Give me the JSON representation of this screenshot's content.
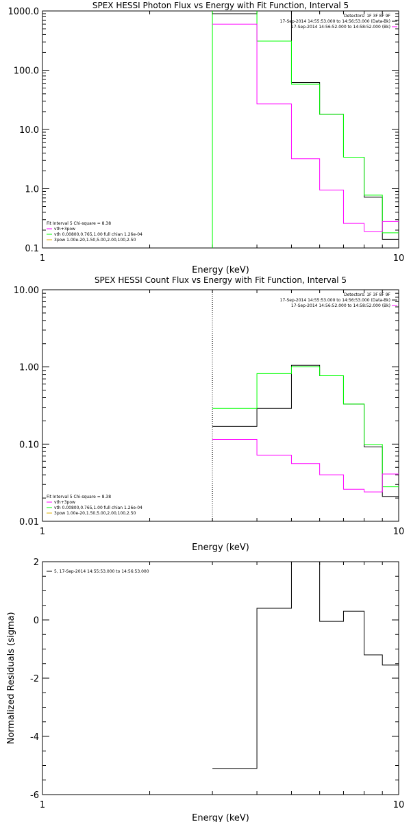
{
  "colors": {
    "data": "#000000",
    "background": "#ff00ff",
    "model": "#00ff00",
    "component": "#ff00ff",
    "spav": "#e0b000"
  },
  "chart_data": [
    {
      "type": "line",
      "title": "SPEX HESSI Photon Flux vs Energy with Fit Function, Interval 5",
      "xlabel": "Energy (keV)",
      "ylabel": "",
      "xscale": "log",
      "yscale": "log",
      "xlim": [
        1,
        10
      ],
      "ylim": [
        0.1,
        1000
      ],
      "xticks": [
        {
          "v": 1,
          "label": "1"
        },
        {
          "v": 10,
          "label": "10"
        }
      ],
      "yticks": [
        {
          "v": 0.1,
          "label": "0.1"
        },
        {
          "v": 1,
          "label": "1.0"
        },
        {
          "v": 10,
          "label": "10.0"
        },
        {
          "v": 100,
          "label": "100.0"
        },
        {
          "v": 1000,
          "label": "1000.0"
        }
      ],
      "vline": {
        "x": 3.0,
        "style": "solid",
        "color": "#00ff00"
      },
      "legend_right": [
        {
          "text": "Detectors: 1F 3F 8F 9F",
          "color": "",
          "line": false
        },
        {
          "text": "17-Sep-2014 14:55:53.000 to 14:56:53.000 (Data-Bk)",
          "color": "#000000",
          "line": true
        },
        {
          "text": "17-Sep-2014 14:56:52.000 to 14:58:52.000 (Bk)",
          "color": "#ff00ff",
          "line": true
        }
      ],
      "legend_left": [
        {
          "text": "Fit Interval 5   Chi-square = 8.38",
          "color": "",
          "line": false
        },
        {
          "text": "vth+3pow",
          "color": "#ff00ff",
          "line": true
        },
        {
          "text": "vth 0.00800,0.765,1.00  full chian 1.26e-04",
          "color": "#00ff00",
          "line": true
        },
        {
          "text": "3pow 1.00e-20,1.50,5.00,2.00,100,2.50",
          "color": "#e0b000",
          "line": true
        }
      ],
      "series": [
        {
          "color": "#000000",
          "edges": [
            3.0,
            4.0,
            5.0,
            6.0,
            7.0,
            8.0,
            9.0,
            10.0
          ],
          "values": [
            900,
            1100,
            62,
            18,
            3.4,
            0.72,
            0.14
          ]
        },
        {
          "color": "#00ff00",
          "edges": [
            3.0,
            4.0,
            5.0,
            6.0,
            7.0,
            8.0,
            9.0,
            10.0
          ],
          "values": [
            1100,
            310,
            58,
            18,
            3.4,
            0.78,
            0.18
          ]
        },
        {
          "color": "#ff00ff",
          "edges": [
            3.0,
            4.0,
            5.0,
            6.0,
            7.0,
            8.0,
            9.0,
            10.0
          ],
          "values": [
            600,
            27,
            3.2,
            0.95,
            0.26,
            0.19,
            0.28
          ]
        }
      ]
    },
    {
      "type": "line",
      "title": "SPEX HESSI Count Flux vs Energy with Fit Function, Interval 5",
      "xlabel": "Energy (keV)",
      "ylabel": "",
      "xscale": "log",
      "yscale": "log",
      "xlim": [
        1,
        10
      ],
      "ylim": [
        0.01,
        10
      ],
      "xticks": [
        {
          "v": 1,
          "label": "1"
        },
        {
          "v": 10,
          "label": "10"
        }
      ],
      "yticks": [
        {
          "v": 0.01,
          "label": "0.01"
        },
        {
          "v": 0.1,
          "label": "0.10"
        },
        {
          "v": 1,
          "label": "1.00"
        },
        {
          "v": 10,
          "label": "10.00"
        }
      ],
      "vline": {
        "x": 3.0,
        "style": "dotted",
        "color": "#000000"
      },
      "legend_right": [
        {
          "text": "Detectors: 1F 3F 8F 9F",
          "color": "",
          "line": false
        },
        {
          "text": "17-Sep-2014 14:55:53.000 to 14:56:53.000 (Data-Bk)",
          "color": "#000000",
          "line": true
        },
        {
          "text": "17-Sep-2014 14:56:52.000 to 14:58:52.000 (Bk)",
          "color": "#ff00ff",
          "line": true
        }
      ],
      "legend_left": [
        {
          "text": "Fit Interval 5   Chi-square = 8.38",
          "color": "",
          "line": false
        },
        {
          "text": "vth+3pow",
          "color": "#ff00ff",
          "line": true
        },
        {
          "text": "vth 0.00800,0.765,1.00  full chian 1.26e-04",
          "color": "#00ff00",
          "line": true
        },
        {
          "text": "3pow 1.00e-20,1.50,5.00,2.00,100,2.50",
          "color": "#e0b000",
          "line": true
        }
      ],
      "series": [
        {
          "color": "#000000",
          "edges": [
            3.0,
            4.0,
            5.0,
            6.0,
            7.0,
            8.0,
            9.0,
            10.0
          ],
          "values": [
            0.17,
            0.29,
            1.05,
            0.77,
            0.33,
            0.092,
            0.021
          ]
        },
        {
          "color": "#00ff00",
          "edges": [
            3.0,
            4.0,
            5.0,
            6.0,
            7.0,
            8.0,
            9.0,
            10.0
          ],
          "values": [
            0.29,
            0.82,
            1.0,
            0.77,
            0.33,
            0.099,
            0.028
          ]
        },
        {
          "color": "#ff00ff",
          "edges": [
            3.0,
            4.0,
            5.0,
            6.0,
            7.0,
            8.0,
            9.0,
            10.0
          ],
          "values": [
            0.115,
            0.072,
            0.056,
            0.04,
            0.026,
            0.024,
            0.041
          ]
        }
      ]
    },
    {
      "type": "line",
      "title": "",
      "xlabel": "Energy (keV)",
      "ylabel": "Normalized Residuals (sigma)",
      "xscale": "log",
      "yscale": "linear",
      "xlim": [
        1,
        10
      ],
      "ylim": [
        -6,
        2
      ],
      "xticks": [
        {
          "v": 1,
          "label": "1"
        },
        {
          "v": 10,
          "label": "10"
        }
      ],
      "yticks": [
        {
          "v": -6,
          "label": "-6"
        },
        {
          "v": -4,
          "label": "-4"
        },
        {
          "v": -2,
          "label": "-2"
        },
        {
          "v": 0,
          "label": "0"
        },
        {
          "v": 2,
          "label": "2"
        }
      ],
      "legend_right": [],
      "legend_left": [
        {
          "text": "5, 17-Sep-2014 14:55:53.000 to 14:56:53.000",
          "color": "#000000",
          "line": true
        }
      ],
      "series": [
        {
          "color": "#000000",
          "edges": [
            3.0,
            4.0,
            5.0,
            6.0,
            7.0,
            8.0,
            9.0,
            10.0
          ],
          "values": [
            -5.1,
            0.4,
            2.0,
            -0.05,
            0.3,
            -1.2,
            -1.55
          ]
        }
      ]
    }
  ]
}
